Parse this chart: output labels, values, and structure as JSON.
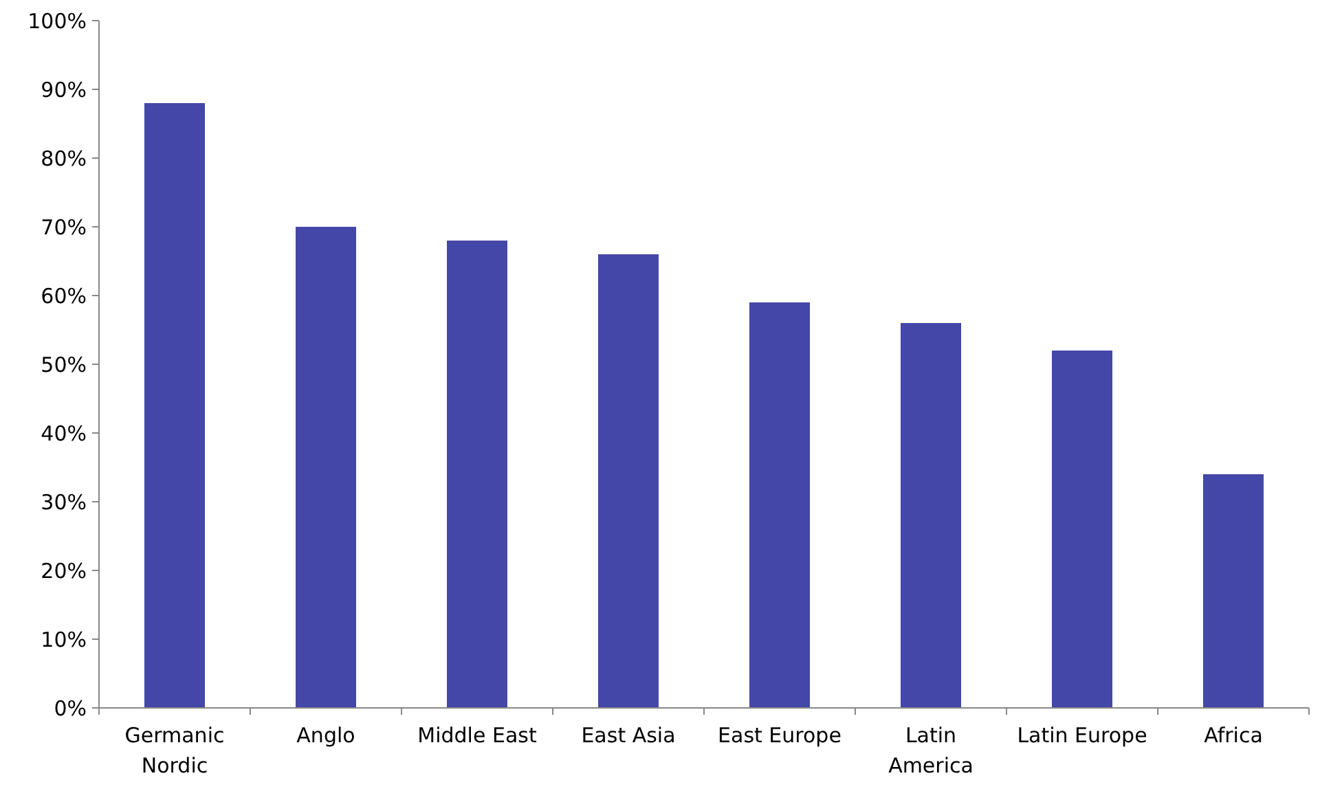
{
  "chart_data": {
    "type": "bar",
    "categories": [
      "Germanic Nordic",
      "Anglo",
      "Middle East",
      "East Asia",
      "East Europe",
      "Latin America",
      "Latin Europe",
      "Africa"
    ],
    "values": [
      88,
      70,
      68,
      66,
      59,
      56,
      52,
      34
    ],
    "color": "#4447a8",
    "ylim": [
      0,
      100
    ],
    "yticks": [
      {
        "value": 0,
        "label": "0%"
      },
      {
        "value": 10,
        "label": "10%"
      },
      {
        "value": 20,
        "label": "20%"
      },
      {
        "value": 30,
        "label": "30%"
      },
      {
        "value": 40,
        "label": "40%"
      },
      {
        "value": 50,
        "label": "50%"
      },
      {
        "value": 60,
        "label": "60%"
      },
      {
        "value": 70,
        "label": "70%"
      },
      {
        "value": 80,
        "label": "80%"
      },
      {
        "value": 90,
        "label": "90%"
      },
      {
        "value": 100,
        "label": "100%"
      }
    ],
    "grid": false
  }
}
